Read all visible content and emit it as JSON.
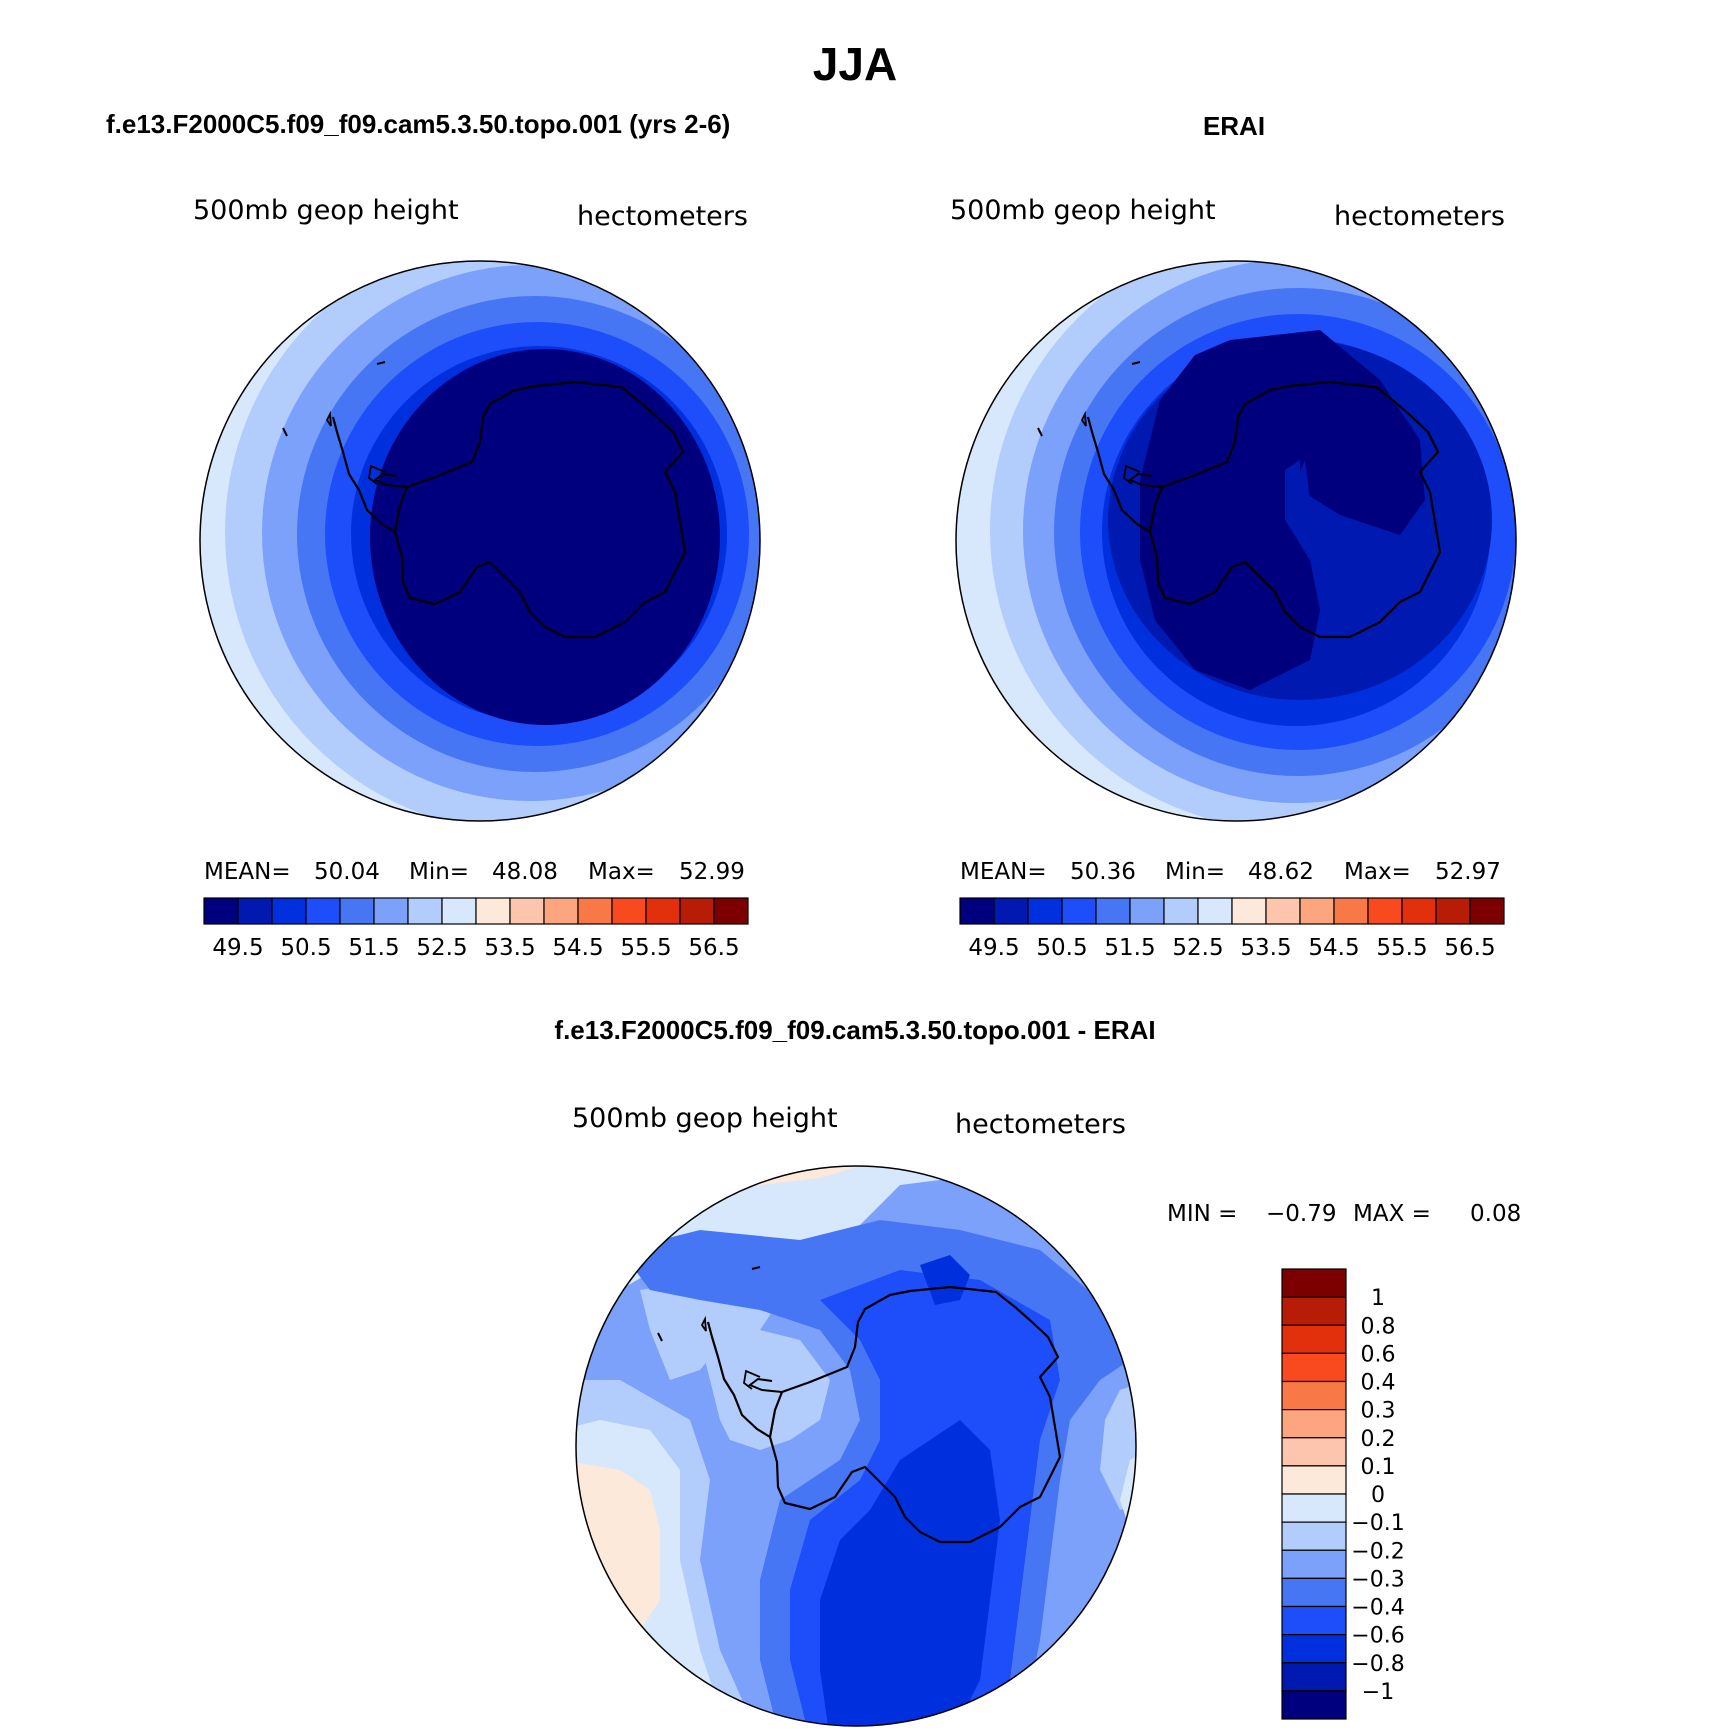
{
  "figure": {
    "title": "JJA"
  },
  "panels": {
    "model": {
      "case_title": "f.e13.F2000C5.f09_f09.cam5.3.50.topo.001 (yrs 2-6)",
      "left_label": "500mb geop height",
      "right_label": "hectometers",
      "stats": {
        "mean_label": "MEAN=",
        "mean": "50.04",
        "min_label": "Min=",
        "min": "48.08",
        "max_label": "Max=",
        "max": "52.99"
      }
    },
    "obs": {
      "case_title": "ERAI",
      "left_label": "500mb geop height",
      "right_label": "hectometers",
      "stats": {
        "mean_label": "MEAN=",
        "mean": "50.36",
        "min_label": "Min=",
        "min": "48.62",
        "max_label": "Max=",
        "max": "52.97"
      }
    },
    "diff": {
      "case_title": "f.e13.F2000C5.f09_f09.cam5.3.50.topo.001 - ERAI",
      "left_label": "500mb geop height",
      "right_label": "hectometers",
      "stats": {
        "min_label": "MIN =",
        "min": "−0.79",
        "max_label": "MAX =",
        "max": "0.08"
      }
    }
  },
  "chart_data": [
    {
      "type": "heatmap",
      "projection": "south-polar-stereographic",
      "title": "f.e13.F2000C5.f09_f09.cam5.3.50.topo.001 (yrs 2-6)",
      "variable": "500mb geop height",
      "units": "hectometers",
      "mean": 50.04,
      "min": 48.08,
      "max": 52.99,
      "contour_levels": [
        49.5,
        50,
        50.5,
        51,
        51.5,
        52,
        52.5,
        53,
        53.5,
        54,
        54.5,
        55,
        55.5,
        56,
        56.5
      ],
      "colorbar_tick_labels": [
        "49.5",
        "50.5",
        "51.5",
        "52.5",
        "53.5",
        "54.5",
        "55.5",
        "56.5"
      ],
      "colorbar_orientation": "horizontal"
    },
    {
      "type": "heatmap",
      "projection": "south-polar-stereographic",
      "title": "ERAI",
      "variable": "500mb geop height",
      "units": "hectometers",
      "mean": 50.36,
      "min": 48.62,
      "max": 52.97,
      "contour_levels": [
        49.5,
        50,
        50.5,
        51,
        51.5,
        52,
        52.5,
        53,
        53.5,
        54,
        54.5,
        55,
        55.5,
        56,
        56.5
      ],
      "colorbar_tick_labels": [
        "49.5",
        "50.5",
        "51.5",
        "52.5",
        "53.5",
        "54.5",
        "55.5",
        "56.5"
      ],
      "colorbar_orientation": "horizontal"
    },
    {
      "type": "heatmap",
      "projection": "south-polar-stereographic",
      "title": "f.e13.F2000C5.f09_f09.cam5.3.50.topo.001 - ERAI",
      "variable": "500mb geop height",
      "units": "hectometers",
      "min": -0.79,
      "max": 0.08,
      "contour_levels": [
        -1,
        -0.8,
        -0.6,
        -0.4,
        -0.3,
        -0.2,
        -0.1,
        0,
        0.1,
        0.2,
        0.3,
        0.4,
        0.6,
        0.8,
        1
      ],
      "colorbar_tick_labels": [
        "1",
        "0.8",
        "0.6",
        "0.4",
        "0.3",
        "0.2",
        "0.1",
        "0",
        "−0.1",
        "−0.2",
        "−0.3",
        "−0.4",
        "−0.6",
        "−0.8",
        "−1"
      ],
      "colorbar_orientation": "vertical"
    }
  ],
  "colors": {
    "palette": [
      "#00007f",
      "#0019b0",
      "#0030de",
      "#1e4dfa",
      "#4776f5",
      "#7ba1fa",
      "#b2cdfb",
      "#d7e8fc",
      "#fde9d9",
      "#fdc5ad",
      "#fca57e",
      "#f97848",
      "#f94a1f",
      "#e22f0c",
      "#b71d06",
      "#7d0000"
    ],
    "outline": "#000000"
  }
}
